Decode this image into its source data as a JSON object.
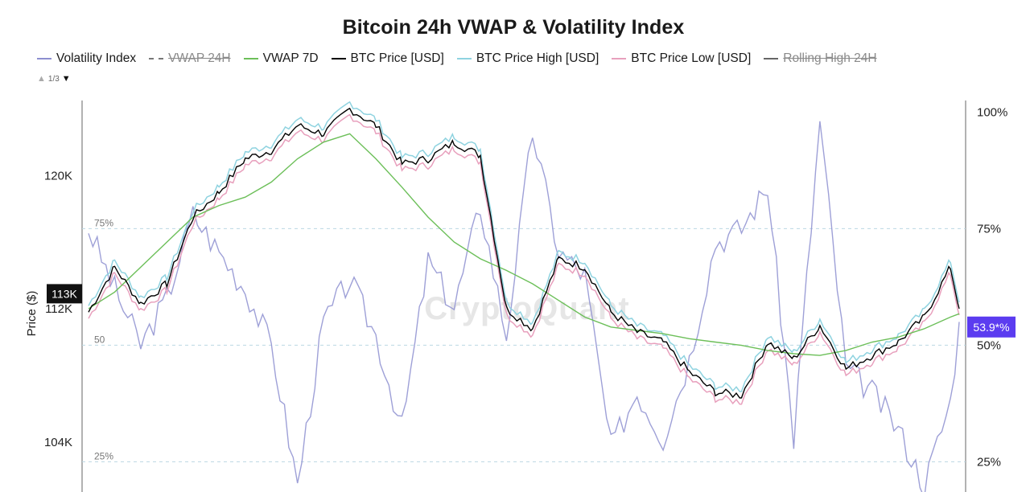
{
  "chart_data": {
    "type": "line",
    "title": "Bitcoin 24h VWAP & Volatility Index",
    "ylabel": "Price ($)",
    "watermark": "CryptoQuant",
    "legend": [
      {
        "name": "Volatility Index",
        "color": "#8d8fd0",
        "style": "solid",
        "enabled": true
      },
      {
        "name": "VWAP 24H",
        "color": "#777777",
        "style": "dashed",
        "enabled": false
      },
      {
        "name": "VWAP 7D",
        "color": "#6cbf59",
        "style": "solid",
        "enabled": true
      },
      {
        "name": "BTC Price [USD]",
        "color": "#000000",
        "style": "solid",
        "enabled": true
      },
      {
        "name": "BTC Price High [USD]",
        "color": "#8fd3e0",
        "style": "solid",
        "enabled": true
      },
      {
        "name": "BTC Price Low [USD]",
        "color": "#e8a0bd",
        "style": "solid",
        "enabled": true
      },
      {
        "name": "Rolling High 24H",
        "color": "#666666",
        "style": "solid",
        "enabled": false
      }
    ],
    "legend_page": "1/3",
    "left_axis": {
      "ticks": [
        {
          "label": "120K",
          "value": 120000
        },
        {
          "label": "112K",
          "value": 112000
        },
        {
          "label": "104K",
          "value": 104000
        }
      ],
      "ylim": [
        101000,
        124500
      ],
      "current_label": "113K",
      "current_value": 112900
    },
    "right_axis": {
      "ticks": [
        {
          "label": "100%",
          "value": 100
        },
        {
          "label": "75%",
          "value": 75
        },
        {
          "label": "50%",
          "value": 50
        },
        {
          "label": "25%",
          "value": 25
        }
      ],
      "ylim": [
        18.5,
        102.5
      ],
      "current_label": "53.9*%",
      "current_value": 53.9
    },
    "inner_ticks": [
      {
        "label": "75%",
        "value": 75
      },
      {
        "label": "50",
        "value": 50
      },
      {
        "label": "25%",
        "value": 25
      }
    ],
    "x": [
      0,
      3,
      6,
      9,
      12,
      15,
      18,
      21,
      24,
      27,
      30,
      33,
      36,
      39,
      42,
      45,
      48,
      51,
      54,
      57,
      60,
      63,
      66,
      69,
      72,
      75,
      78,
      81,
      84,
      87,
      90,
      93,
      96,
      99,
      100
    ],
    "series": [
      {
        "name": "BTC Price [USD]",
        "color": "#000000",
        "values": [
          111800,
          114500,
          112300,
          113500,
          117500,
          119000,
          121000,
          121500,
          123000,
          122500,
          124000,
          123000,
          120700,
          121000,
          122000,
          121200,
          112000,
          110800,
          115000,
          114500,
          111800,
          110600,
          110000,
          108200,
          107000,
          106800,
          110000,
          109000,
          111000,
          108400,
          109200,
          110000,
          111500,
          114500,
          112000
        ]
      },
      {
        "name": "VWAP 7D",
        "color": "#6cbf59",
        "values": [
          112000,
          113000,
          114500,
          116000,
          117500,
          118200,
          118700,
          119600,
          121000,
          122000,
          122500,
          121000,
          119300,
          117500,
          116000,
          115000,
          114300,
          113500,
          112500,
          111500,
          110900,
          110700,
          110500,
          110200,
          110000,
          109800,
          109500,
          109300,
          109200,
          109500,
          110000,
          110300,
          110800,
          111500,
          111700
        ]
      },
      {
        "name": "Volatility Index",
        "color": "#8d8fd0",
        "values": [
          75,
          62,
          50,
          60,
          78,
          70,
          62,
          50,
          20,
          55,
          64,
          52,
          32,
          68,
          58,
          80,
          52,
          96,
          70,
          65,
          28,
          40,
          30,
          47,
          72,
          75,
          84,
          30,
          98,
          45,
          40,
          32,
          20,
          38,
          55
        ]
      }
    ]
  }
}
